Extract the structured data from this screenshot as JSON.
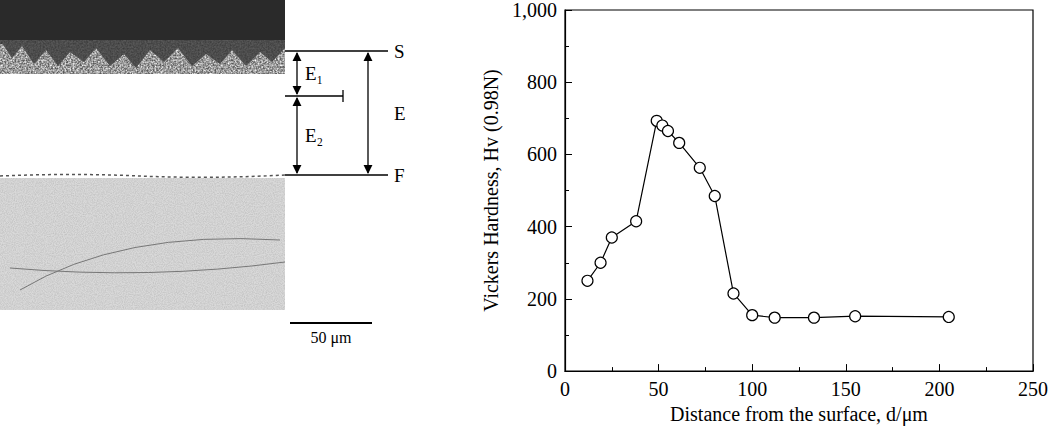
{
  "chart_data": {
    "type": "line",
    "x_label": "Distance from the surface, d/μm",
    "y_label": "Vickers Hardness, Hv (0.98N)",
    "x": [
      12,
      19,
      25,
      38,
      49,
      52,
      55,
      61,
      72,
      80,
      90,
      100,
      112,
      133,
      155,
      205
    ],
    "values": [
      250,
      300,
      370,
      415,
      693,
      680,
      665,
      632,
      563,
      485,
      215,
      155,
      148,
      148,
      152,
      150
    ],
    "color": "#000000",
    "marker": "circle",
    "line_style": "solid",
    "xlim": [
      0,
      250
    ],
    "xticks": [
      0,
      50,
      100,
      150,
      200,
      250
    ],
    "ylim": [
      0,
      1000
    ],
    "yticks": [
      0,
      200,
      400,
      600,
      800,
      1000
    ],
    "grid": false
  },
  "micrograph": {
    "labels": {
      "S": "S",
      "E": "E",
      "E1": "E₁",
      "E2": "E₂",
      "F": "F"
    },
    "scale_bar": "50 μm"
  }
}
